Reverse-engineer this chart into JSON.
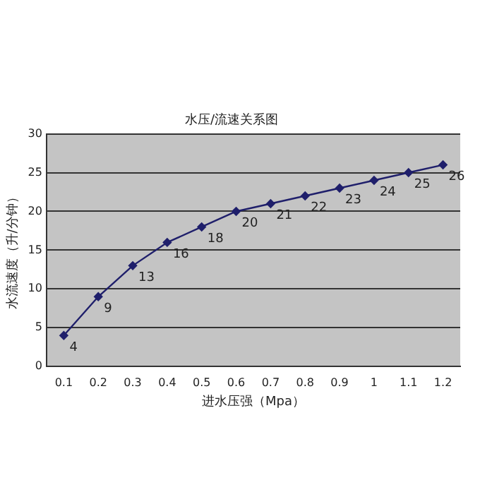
{
  "chart_data": {
    "type": "line",
    "title": "水压/流速关系图",
    "xlabel": "进水压强（Mpa）",
    "ylabel": "水流速度（升/分钟）",
    "categories": [
      "0.1",
      "0.2",
      "0.3",
      "0.4",
      "0.5",
      "0.6",
      "0.7",
      "0.8",
      "0.9",
      "1",
      "1.1",
      "1.2"
    ],
    "series": [
      {
        "color": "#1f1f6b",
        "values": [
          4,
          9,
          13,
          16,
          18,
          20,
          21,
          22,
          23,
          24,
          25,
          26
        ]
      }
    ],
    "ylim": [
      0,
      30
    ],
    "yticks": [
      0,
      5,
      10,
      15,
      20,
      25,
      30
    ],
    "grid": "y",
    "legend": false,
    "marker": "diamond",
    "line_style": "solid",
    "data_labels": true
  }
}
